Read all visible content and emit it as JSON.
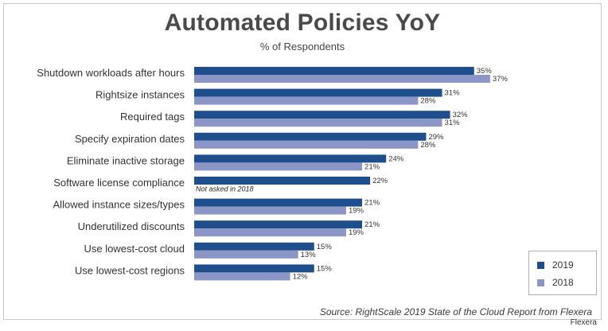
{
  "title": "Automated Policies YoY",
  "subtitle": "% of Respondents",
  "source": "Source: RightScale 2019 State of the Cloud Report from Flexera",
  "brand": "Flexera",
  "colors": {
    "s2019": "#1f4e8c",
    "s2018": "#8c96c6"
  },
  "chart_data": {
    "type": "bar",
    "orientation": "horizontal",
    "categories": [
      "Shutdown workloads after hours",
      "Rightsize instances",
      "Required tags",
      "Specify expiration dates",
      "Eliminate inactive storage",
      "Software license compliance",
      "Allowed instance sizes/types",
      "Underutilized discounts",
      "Use lowest-cost cloud",
      "Use lowest-cost regions"
    ],
    "series": [
      {
        "name": "2019",
        "values": [
          35,
          31,
          32,
          29,
          24,
          22,
          21,
          21,
          15,
          15
        ]
      },
      {
        "name": "2018",
        "values": [
          37,
          28,
          31,
          28,
          21,
          null,
          19,
          19,
          13,
          12
        ]
      }
    ],
    "annotations": [
      {
        "category": "Software license compliance",
        "text": "Not asked in 2018"
      }
    ],
    "value_suffix": "%",
    "xlim": [
      0,
      40
    ],
    "grid": false,
    "legend": "bottom-right"
  }
}
